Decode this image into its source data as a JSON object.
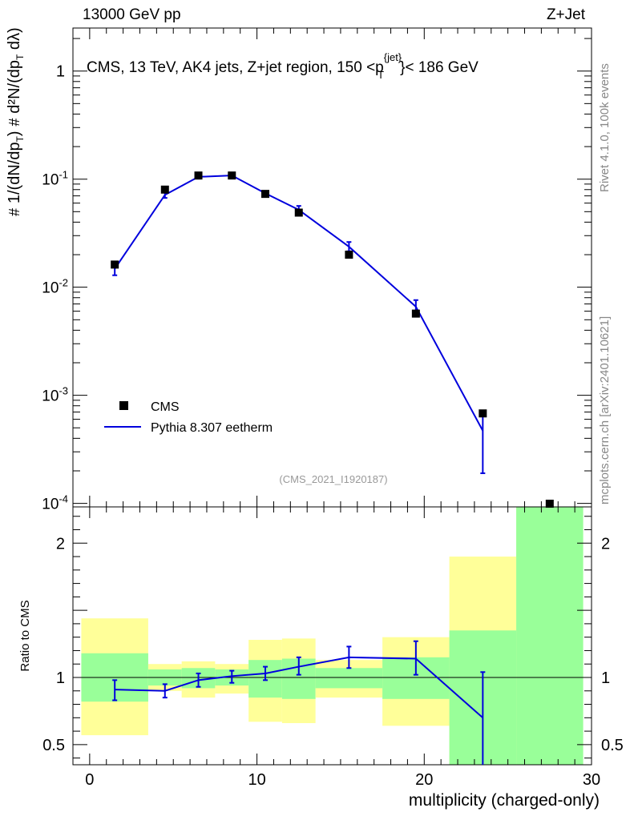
{
  "header": {
    "left": "13000 GeV pp",
    "right": "Z+Jet"
  },
  "side_text": {
    "rivet": "Rivet 4.1.0,  100k events",
    "source": "mcplots.cern.ch [arXiv:2401.10621]"
  },
  "colors": {
    "mc": "#0000dd",
    "band_inner": "#99ff99",
    "band_outer": "#ffff99",
    "data": "#000000",
    "side_text": "#888888"
  },
  "chart_data": [
    {
      "type": "scatter",
      "panel": "main",
      "title": "CMS, 13 TeV, AK4 jets, Z+jet region, 150 <p_T^{jet}< 186 GeV",
      "ylabel": "1/(dN/dp_T) d²N/(dp_T dλ)",
      "watermark": "(CMS_2021_I1920187)",
      "yscale": "log",
      "xlim": [
        -1,
        30
      ],
      "ylim": [
        9.28e-05,
        2.5
      ],
      "y_ticks": [
        {
          "value": 0.0001,
          "label": "10^-4"
        },
        {
          "value": 0.001,
          "label": "10^-3"
        },
        {
          "value": 0.01,
          "label": "10^-2"
        },
        {
          "value": 0.1,
          "label": "10^-1"
        },
        {
          "value": 1,
          "label": "1"
        }
      ],
      "legend": {
        "position": "bottom-left",
        "entries": [
          "CMS",
          "Pythia 8.307 eetherm"
        ]
      },
      "series": [
        {
          "name": "CMS",
          "style": "markers",
          "x": [
            1.5,
            4.5,
            6.5,
            8.5,
            10.5,
            12.5,
            15.5,
            19.5,
            23.5,
            27.5
          ],
          "y": [
            0.0162,
            0.08,
            0.108,
            0.108,
            0.073,
            0.049,
            0.02,
            0.0057,
            0.00068,
            8.5e-05
          ]
        },
        {
          "name": "Pythia 8.307 eetherm",
          "style": "line-errorbars",
          "x": [
            1.5,
            4.5,
            6.5,
            8.5,
            10.5,
            12.5,
            15.5,
            19.5,
            23.5
          ],
          "y": [
            0.0148,
            0.0715,
            0.105,
            0.108,
            0.074,
            0.052,
            0.0237,
            0.0066,
            0.00047
          ],
          "yerr_low": [
            0.0019,
            0.0045,
            0.004,
            0.004,
            0.003,
            0.0035,
            0.0022,
            0.001,
            0.00028
          ],
          "yerr_high": [
            0.0019,
            0.0045,
            0.004,
            0.004,
            0.003,
            0.0045,
            0.0025,
            0.001,
            0.00022
          ]
        }
      ]
    },
    {
      "type": "line",
      "panel": "ratio",
      "ylabel": "Ratio to CMS",
      "xlabel": "multiplicity (charged-only)",
      "xlim": [
        -1,
        30
      ],
      "ylim": [
        0.35,
        2.27
      ],
      "x_ticks": [
        0,
        10,
        20,
        30
      ],
      "y_ticks": [
        0.5,
        1,
        2
      ],
      "y_tick_labels": [
        "0.5",
        "1",
        "2"
      ],
      "reference_line": 1,
      "bands": [
        {
          "x0": -0.5,
          "x1": 3.5,
          "outer": [
            0.57,
            1.44
          ],
          "inner": [
            0.82,
            1.18
          ]
        },
        {
          "x0": 3.5,
          "x1": 5.5,
          "outer": [
            0.9,
            1.1
          ],
          "inner": [
            0.94,
            1.06
          ]
        },
        {
          "x0": 5.5,
          "x1": 7.5,
          "outer": [
            0.85,
            1.12
          ],
          "inner": [
            0.92,
            1.07
          ]
        },
        {
          "x0": 7.5,
          "x1": 9.5,
          "outer": [
            0.88,
            1.1
          ],
          "inner": [
            0.94,
            1.06
          ]
        },
        {
          "x0": 9.5,
          "x1": 11.5,
          "outer": [
            0.67,
            1.28
          ],
          "inner": [
            0.85,
            1.13
          ]
        },
        {
          "x0": 11.5,
          "x1": 13.5,
          "outer": [
            0.66,
            1.29
          ],
          "inner": [
            0.84,
            1.14
          ]
        },
        {
          "x0": 13.5,
          "x1": 17.5,
          "outer": [
            0.85,
            1.13
          ],
          "inner": [
            0.92,
            1.07
          ]
        },
        {
          "x0": 17.5,
          "x1": 21.5,
          "outer": [
            0.64,
            1.3
          ],
          "inner": [
            0.84,
            1.15
          ]
        },
        {
          "x0": 21.5,
          "x1": 25.5,
          "outer": [
            0.35,
            1.9
          ],
          "inner": [
            0.35,
            1.35
          ]
        },
        {
          "x0": 25.5,
          "x1": 29.5,
          "outer": [
            0.35,
            2.27
          ],
          "inner": [
            0.35,
            2.27
          ]
        }
      ],
      "series": [
        {
          "name": "Pythia 8.307 eetherm / CMS",
          "x": [
            1.5,
            4.5,
            6.5,
            8.5,
            10.5,
            12.5,
            15.5,
            19.5,
            23.5
          ],
          "y": [
            0.91,
            0.9,
            0.98,
            1.01,
            1.03,
            1.08,
            1.15,
            1.14,
            0.7
          ],
          "yerr_low": [
            0.08,
            0.05,
            0.05,
            0.05,
            0.05,
            0.06,
            0.08,
            0.12,
            0.35
          ],
          "yerr_high": [
            0.07,
            0.05,
            0.05,
            0.04,
            0.05,
            0.07,
            0.08,
            0.13,
            0.34
          ]
        }
      ]
    }
  ]
}
